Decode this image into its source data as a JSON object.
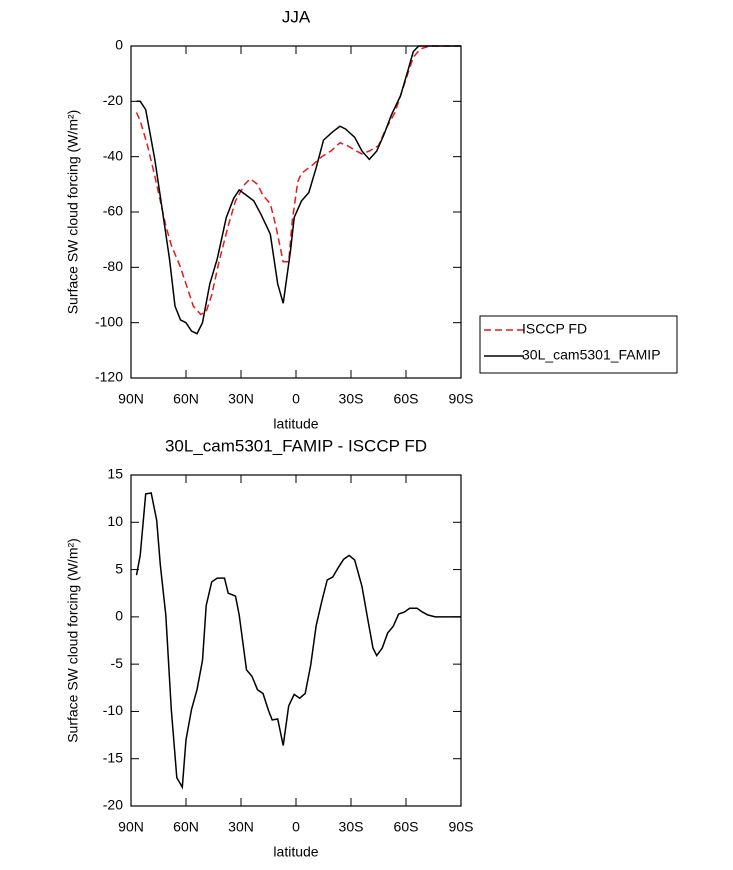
{
  "chart_data": [
    {
      "type": "line",
      "title": "JJA",
      "xlabel": "latitude",
      "ylabel": "Surface SW cloud forcing (W/m²)",
      "xlim": [
        90,
        -90
      ],
      "xticks": [
        {
          "value": 90,
          "label": "90N"
        },
        {
          "value": 60,
          "label": "60N"
        },
        {
          "value": 30,
          "label": "30N"
        },
        0,
        {
          "value": -30,
          "label": "30S"
        },
        {
          "value": -60,
          "label": "60S"
        },
        {
          "value": -90,
          "label": "90S"
        }
      ],
      "ylim": [
        -120,
        0
      ],
      "yticks": [
        0,
        -20,
        -40,
        -60,
        -80,
        -100,
        -120
      ],
      "legend": "right",
      "series": [
        {
          "name": "ISCCP FD",
          "color": "#e41a1c",
          "style": "dashed",
          "x": [
            87,
            85,
            81,
            77,
            74,
            71,
            68,
            63,
            60,
            56,
            52,
            49,
            46,
            42,
            37,
            33,
            28,
            25,
            21,
            18,
            14,
            11,
            7,
            4,
            2,
            -1,
            -3,
            -9,
            -14,
            -19,
            -24,
            -28,
            -33,
            -36,
            -40,
            -45,
            -49,
            -54,
            -57,
            -61,
            -64,
            -68,
            -73,
            -90
          ],
          "values": [
            -24,
            -27,
            -36,
            -47,
            -56,
            -65,
            -72,
            -80,
            -86,
            -94,
            -97,
            -96,
            -90,
            -78,
            -65,
            -56,
            -50,
            -48,
            -50,
            -54,
            -57,
            -65,
            -78,
            -78,
            -63,
            -49,
            -46,
            -43,
            -40,
            -38,
            -35,
            -36,
            -38,
            -39,
            -38,
            -36,
            -30,
            -24,
            -18,
            -10,
            -4,
            -1,
            0,
            0
          ]
        },
        {
          "name": "30L_cam5301_FAMIP",
          "color": "#000000",
          "style": "solid",
          "x": [
            87,
            85,
            82,
            77,
            73,
            69,
            66,
            63,
            60,
            57,
            54,
            51,
            47,
            43,
            38,
            34,
            31,
            27,
            23,
            19,
            14,
            10,
            7,
            3,
            1,
            -3,
            -7,
            -11,
            -15,
            -20,
            -24,
            -27,
            -32,
            -36,
            -40,
            -44,
            -48,
            -52,
            -57,
            -61,
            -64,
            -67,
            -72,
            -90
          ],
          "values": [
            -20,
            -20,
            -23,
            -41,
            -59,
            -77,
            -94,
            -99,
            -100,
            -103,
            -104,
            -100,
            -86,
            -77,
            -62,
            -55,
            -52,
            -54,
            -56,
            -61,
            -68,
            -86,
            -93,
            -74,
            -62,
            -56,
            -53,
            -44,
            -34,
            -31,
            -29,
            -30,
            -33,
            -38,
            -41,
            -38,
            -32,
            -25,
            -18,
            -9,
            -2,
            0,
            0,
            0
          ]
        }
      ]
    },
    {
      "type": "line",
      "title": "30L_cam5301_FAMIP - ISCCP FD",
      "xlabel": "latitude",
      "ylabel": "Surface SW cloud forcing (W/m²)",
      "xlim": [
        90,
        -90
      ],
      "xticks": [
        {
          "value": 90,
          "label": "90N"
        },
        {
          "value": 60,
          "label": "60N"
        },
        {
          "value": 30,
          "label": "30N"
        },
        0,
        {
          "value": -30,
          "label": "30S"
        },
        {
          "value": -60,
          "label": "60S"
        },
        {
          "value": -90,
          "label": "90S"
        }
      ],
      "ylim": [
        -20,
        15
      ],
      "yticks": [
        15,
        10,
        5,
        0,
        -5,
        -10,
        -15,
        -20
      ],
      "color": "#000000",
      "x": [
        87,
        85,
        82,
        79,
        76,
        74,
        71,
        68,
        65,
        62,
        60,
        57,
        54,
        51,
        49,
        46,
        43,
        39,
        37,
        33,
        31,
        27,
        24,
        21,
        18,
        15,
        13,
        10,
        7,
        4,
        1,
        -2,
        -5,
        -8,
        -11,
        -14,
        -17,
        -20,
        -23,
        -26,
        -29,
        -32,
        -36,
        -39,
        -42,
        -44,
        -47,
        -50,
        -53,
        -56,
        -59,
        -62,
        -66,
        -69,
        -72,
        -76,
        -90
      ],
      "values": [
        4.4,
        6.5,
        13,
        13.1,
        10.2,
        5.5,
        0.2,
        -9.8,
        -17,
        -18,
        -13,
        -9.8,
        -7.7,
        -4.6,
        1.2,
        3.7,
        4.1,
        4.1,
        2.5,
        2.2,
        0.2,
        -5.6,
        -6.3,
        -7.7,
        -8.1,
        -9.9,
        -10.9,
        -10.8,
        -13.6,
        -9.4,
        -8.2,
        -8.6,
        -8.1,
        -5.1,
        -0.9,
        1.6,
        3.9,
        4.2,
        5.2,
        6.1,
        6.5,
        6.0,
        3.2,
        -0.1,
        -3.3,
        -4.1,
        -3.3,
        -1.7,
        -1.0,
        0.3,
        0.5,
        0.9,
        0.9,
        0.5,
        0.2,
        0,
        0
      ]
    }
  ]
}
